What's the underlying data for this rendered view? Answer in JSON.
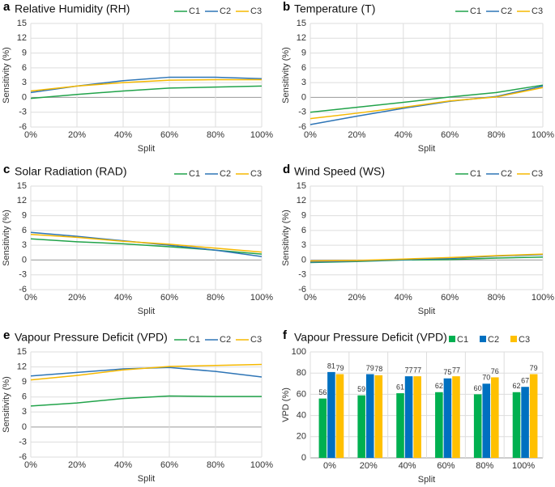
{
  "chart_data": [
    {
      "type": "line",
      "panel": "a",
      "title": "Relative Humidity (RH)",
      "xlabel": "Split",
      "ylabel": "Sensitivity (%)",
      "categories": [
        "0%",
        "20%",
        "40%",
        "60%",
        "80%",
        "100%"
      ],
      "series": [
        {
          "name": "C1",
          "color": "#21a34a",
          "values": [
            -0.2,
            0.6,
            1.3,
            1.9,
            2.1,
            2.3
          ]
        },
        {
          "name": "C2",
          "color": "#2e75b6",
          "values": [
            1.0,
            2.3,
            3.4,
            4.1,
            4.1,
            3.8
          ]
        },
        {
          "name": "C3",
          "color": "#f5b800",
          "values": [
            1.3,
            2.3,
            3.0,
            3.5,
            3.6,
            3.6
          ]
        }
      ],
      "ylim": [
        -6,
        15
      ],
      "yticks": [
        -6,
        -3,
        0,
        3,
        6,
        9,
        12,
        15
      ],
      "grid": true,
      "legend": "top-right"
    },
    {
      "type": "line",
      "panel": "b",
      "title": "Temperature (T)",
      "xlabel": "Split",
      "ylabel": "Sensitivity (%)",
      "categories": [
        "0%",
        "20%",
        "40%",
        "60%",
        "80%",
        "100%"
      ],
      "series": [
        {
          "name": "C1",
          "color": "#21a34a",
          "values": [
            -3.0,
            -2.0,
            -1.0,
            0.1,
            1.0,
            2.5
          ]
        },
        {
          "name": "C2",
          "color": "#2e75b6",
          "values": [
            -5.5,
            -3.8,
            -2.2,
            -0.8,
            0.2,
            2.3
          ]
        },
        {
          "name": "C3",
          "color": "#f5b800",
          "values": [
            -4.3,
            -3.2,
            -2.0,
            -0.7,
            0.1,
            2.0
          ]
        }
      ],
      "ylim": [
        -6,
        15
      ],
      "yticks": [
        -6,
        -3,
        0,
        3,
        6,
        9,
        12,
        15
      ],
      "grid": true,
      "legend": "top-right"
    },
    {
      "type": "line",
      "panel": "c",
      "title": "Solar Radiation (RAD)",
      "xlabel": "Split",
      "ylabel": "Sensitivity (%)",
      "categories": [
        "0%",
        "20%",
        "40%",
        "60%",
        "80%",
        "100%"
      ],
      "series": [
        {
          "name": "C1",
          "color": "#21a34a",
          "values": [
            4.3,
            3.7,
            3.3,
            2.7,
            2.0,
            1.2
          ]
        },
        {
          "name": "C2",
          "color": "#2e75b6",
          "values": [
            5.6,
            4.8,
            3.9,
            3.0,
            2.0,
            0.7
          ]
        },
        {
          "name": "C3",
          "color": "#f5b800",
          "values": [
            5.2,
            4.6,
            3.8,
            3.2,
            2.4,
            1.6
          ]
        }
      ],
      "ylim": [
        -6,
        15
      ],
      "yticks": [
        -6,
        -3,
        0,
        3,
        6,
        9,
        12,
        15
      ],
      "grid": true,
      "legend": "top-right"
    },
    {
      "type": "line",
      "panel": "d",
      "title": "Wind Speed (WS)",
      "xlabel": "Split",
      "ylabel": "Sensitivity (%)",
      "categories": [
        "0%",
        "20%",
        "40%",
        "60%",
        "80%",
        "100%"
      ],
      "series": [
        {
          "name": "C1",
          "color": "#21a34a",
          "values": [
            -0.5,
            -0.3,
            0.0,
            0.1,
            0.4,
            0.6
          ]
        },
        {
          "name": "C2",
          "color": "#2e75b6",
          "values": [
            -0.4,
            -0.2,
            0.1,
            0.3,
            0.8,
            1.1
          ]
        },
        {
          "name": "C3",
          "color": "#f5b800",
          "values": [
            -0.2,
            -0.1,
            0.2,
            0.5,
            0.9,
            1.2
          ]
        }
      ],
      "ylim": [
        -6,
        15
      ],
      "yticks": [
        -6,
        -3,
        0,
        3,
        6,
        9,
        12,
        15
      ],
      "grid": true,
      "legend": "top-right"
    },
    {
      "type": "line",
      "panel": "e",
      "title": "Vapour Pressure Deficit (VPD)",
      "xlabel": "Split",
      "ylabel": "Sensitivity (%)",
      "categories": [
        "0%",
        "20%",
        "40%",
        "60%",
        "80%",
        "100%"
      ],
      "series": [
        {
          "name": "C1",
          "color": "#21a34a",
          "values": [
            4.2,
            4.8,
            5.7,
            6.2,
            6.1,
            6.1
          ]
        },
        {
          "name": "C2",
          "color": "#2e75b6",
          "values": [
            10.2,
            10.9,
            11.6,
            11.9,
            11.1,
            10.0
          ]
        },
        {
          "name": "C3",
          "color": "#f5b800",
          "values": [
            9.4,
            10.3,
            11.4,
            12.1,
            12.3,
            12.5
          ]
        }
      ],
      "ylim": [
        -6,
        15
      ],
      "yticks": [
        -6,
        -3,
        0,
        3,
        6,
        9,
        12,
        15
      ],
      "grid": true,
      "legend": "top-right"
    },
    {
      "type": "bar",
      "panel": "f",
      "title": "Vapour Pressure Deficit (VPD)",
      "xlabel": "Split",
      "ylabel": "VPD (%)",
      "categories": [
        "0%",
        "20%",
        "40%",
        "60%",
        "80%",
        "100%"
      ],
      "series": [
        {
          "name": "C1",
          "color": "#00b050",
          "values": [
            56,
            59,
            61,
            62,
            60,
            62
          ]
        },
        {
          "name": "C2",
          "color": "#0070c0",
          "values": [
            81,
            79,
            77,
            75,
            70,
            67
          ]
        },
        {
          "name": "C3",
          "color": "#ffc000",
          "values": [
            79,
            78,
            77,
            77,
            76,
            79
          ]
        }
      ],
      "ylim": [
        0,
        100
      ],
      "yticks": [
        0,
        20,
        40,
        60,
        80,
        100
      ],
      "grid": true,
      "legend": "top-right"
    }
  ]
}
